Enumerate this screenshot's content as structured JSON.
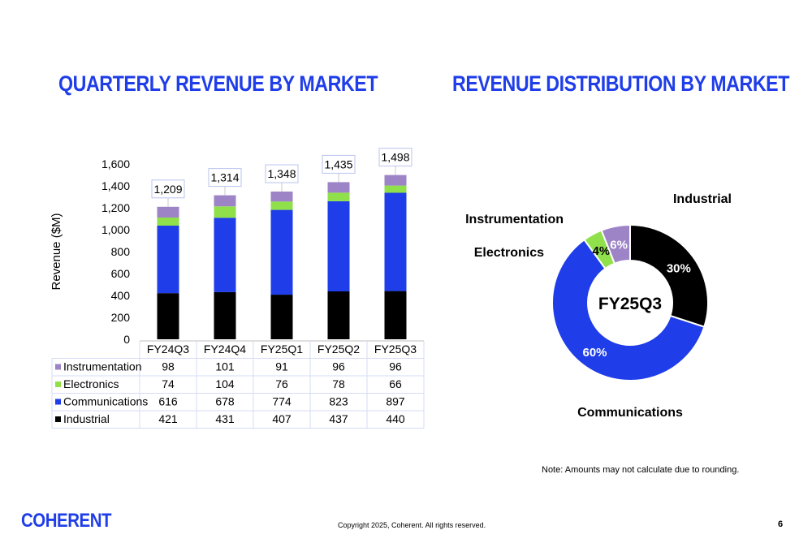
{
  "slide": {
    "left_title": "QUARTERLY REVENUE BY MARKET",
    "right_title": "REVENUE DISTRIBUTION BY MARKET",
    "note": "Note: Amounts may not calculate due to rounding.",
    "copyright": "Copyright 2025, Coherent. All rights reserved.",
    "page_number": "6",
    "logo_text": "COHERENT",
    "brand_color": "#1f3de8"
  },
  "chart_data": [
    {
      "type": "bar",
      "stacked": true,
      "title": "QUARTERLY REVENUE BY MARKET",
      "ylabel": "Revenue ($M)",
      "xlabel": "",
      "ylim": [
        0,
        1600
      ],
      "yticks": [
        "0",
        "200",
        "400",
        "600",
        "800",
        "1,000",
        "1,200",
        "1,400",
        "1,600"
      ],
      "categories": [
        "FY24Q3",
        "FY24Q4",
        "FY25Q1",
        "FY25Q2",
        "FY25Q3"
      ],
      "totals": [
        "1,209",
        "1,314",
        "1,348",
        "1,435",
        "1,498"
      ],
      "series": [
        {
          "name": "Industrial",
          "color": "#000000",
          "values": [
            421,
            431,
            407,
            437,
            440
          ]
        },
        {
          "name": "Communications",
          "color": "#1f3de8",
          "values": [
            616,
            678,
            774,
            823,
            897
          ]
        },
        {
          "name": "Electronics",
          "color": "#8fe04a",
          "values": [
            74,
            104,
            76,
            78,
            66
          ]
        },
        {
          "name": "Instrumentation",
          "color": "#9d84c6",
          "values": [
            98,
            101,
            91,
            96,
            96
          ]
        }
      ],
      "table_rows_order": [
        "Instrumentation",
        "Electronics",
        "Communications",
        "Industrial"
      ]
    },
    {
      "type": "pie",
      "donut": true,
      "title": "REVENUE DISTRIBUTION BY MARKET",
      "center_label": "FY25Q3",
      "slices": [
        {
          "name": "Industrial",
          "value": 30,
          "label": "30%",
          "color": "#000000"
        },
        {
          "name": "Communications",
          "value": 60,
          "label": "60%",
          "color": "#1f3de8"
        },
        {
          "name": "Electronics",
          "value": 4,
          "label": "4%",
          "color": "#8fe04a"
        },
        {
          "name": "Instrumentation",
          "value": 6,
          "label": "6%",
          "color": "#9d84c6"
        }
      ]
    }
  ]
}
